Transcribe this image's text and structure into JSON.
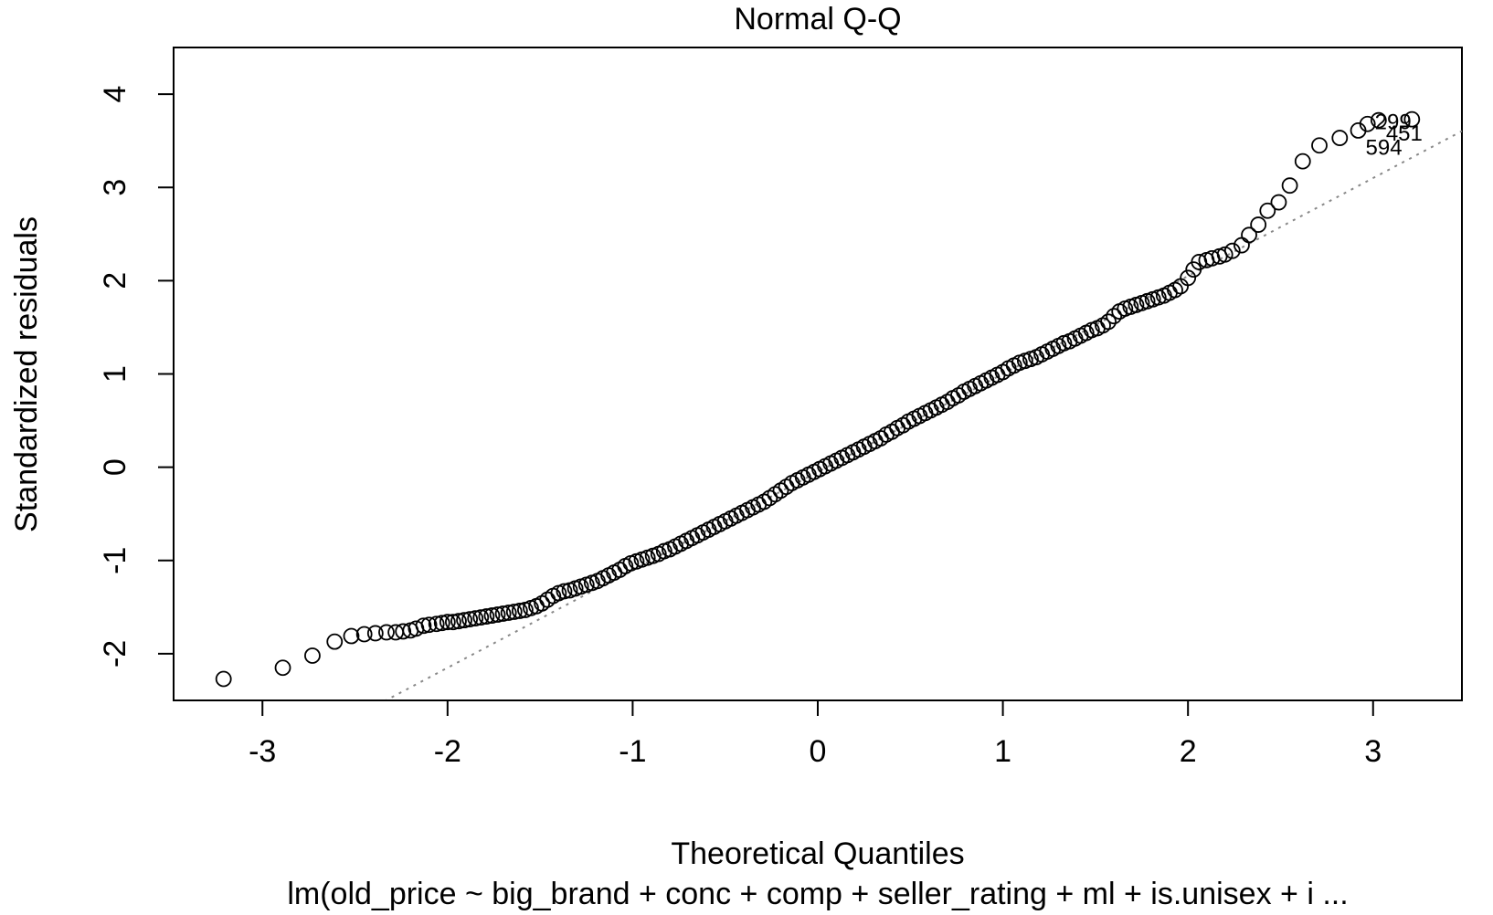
{
  "chart_data": {
    "type": "scatter",
    "title": "Normal Q-Q",
    "xlabel": "Theoretical Quantiles",
    "ylabel": "Standardized residuals",
    "subtitle": "lm(old_price ~ big_brand + conc + comp + seller_rating + ml + is.unisex + i ...",
    "xlim": [
      -3.48,
      3.48
    ],
    "ylim": [
      -2.5,
      4.5
    ],
    "xticks": [
      -3,
      -2,
      -1,
      0,
      1,
      2,
      3
    ],
    "yticks": [
      -2,
      -1,
      0,
      1,
      2,
      3,
      4
    ],
    "grid": false,
    "reference_line": {
      "style": "dotted",
      "color": "#888888",
      "slope": 1.05,
      "intercept": -0.05
    },
    "outlier_labels": [
      {
        "label": "299",
        "x": 2.97,
        "y": 3.72
      },
      {
        "label": "451",
        "x": 3.03,
        "y": 3.6
      },
      {
        "label": "594",
        "x": 2.92,
        "y": 3.45
      }
    ],
    "points": [
      [
        -3.21,
        -2.27
      ],
      [
        -2.89,
        -2.15
      ],
      [
        -2.73,
        -2.02
      ],
      [
        -2.61,
        -1.87
      ],
      [
        -2.52,
        -1.81
      ],
      [
        -2.45,
        -1.79
      ],
      [
        -2.39,
        -1.78
      ],
      [
        -2.33,
        -1.77
      ],
      [
        -2.28,
        -1.77
      ],
      [
        -2.24,
        -1.76
      ],
      [
        -2.2,
        -1.75
      ],
      [
        -2.17,
        -1.73
      ],
      [
        -2.13,
        -1.7
      ],
      [
        -2.1,
        -1.69
      ],
      [
        -2.06,
        -1.68
      ],
      [
        -2.03,
        -1.67
      ],
      [
        -2.0,
        -1.66
      ],
      [
        -1.97,
        -1.66
      ],
      [
        -1.94,
        -1.65
      ],
      [
        -1.91,
        -1.64
      ],
      [
        -1.88,
        -1.63
      ],
      [
        -1.85,
        -1.62
      ],
      [
        -1.82,
        -1.61
      ],
      [
        -1.79,
        -1.6
      ],
      [
        -1.76,
        -1.59
      ],
      [
        -1.73,
        -1.58
      ],
      [
        -1.7,
        -1.57
      ],
      [
        -1.67,
        -1.56
      ],
      [
        -1.64,
        -1.55
      ],
      [
        -1.61,
        -1.54
      ],
      [
        -1.58,
        -1.53
      ],
      [
        -1.55,
        -1.51
      ],
      [
        -1.52,
        -1.49
      ],
      [
        -1.49,
        -1.46
      ],
      [
        -1.46,
        -1.42
      ],
      [
        -1.43,
        -1.38
      ],
      [
        -1.4,
        -1.35
      ],
      [
        -1.37,
        -1.33
      ],
      [
        -1.34,
        -1.32
      ],
      [
        -1.31,
        -1.3
      ],
      [
        -1.28,
        -1.28
      ],
      [
        -1.25,
        -1.26
      ],
      [
        -1.22,
        -1.24
      ],
      [
        -1.19,
        -1.22
      ],
      [
        -1.16,
        -1.19
      ],
      [
        -1.13,
        -1.16
      ],
      [
        -1.1,
        -1.13
      ],
      [
        -1.07,
        -1.1
      ],
      [
        -1.04,
        -1.06
      ],
      [
        -1.01,
        -1.03
      ],
      [
        -0.98,
        -1.01
      ],
      [
        -0.95,
        -0.99
      ],
      [
        -0.92,
        -0.97
      ],
      [
        -0.89,
        -0.95
      ],
      [
        -0.86,
        -0.93
      ],
      [
        -0.83,
        -0.9
      ],
      [
        -0.8,
        -0.88
      ],
      [
        -0.77,
        -0.85
      ],
      [
        -0.74,
        -0.82
      ],
      [
        -0.71,
        -0.79
      ],
      [
        -0.68,
        -0.76
      ],
      [
        -0.65,
        -0.73
      ],
      [
        -0.62,
        -0.7
      ],
      [
        -0.59,
        -0.67
      ],
      [
        -0.56,
        -0.64
      ],
      [
        -0.53,
        -0.61
      ],
      [
        -0.5,
        -0.58
      ],
      [
        -0.47,
        -0.55
      ],
      [
        -0.44,
        -0.52
      ],
      [
        -0.41,
        -0.49
      ],
      [
        -0.38,
        -0.46
      ],
      [
        -0.35,
        -0.43
      ],
      [
        -0.32,
        -0.4
      ],
      [
        -0.29,
        -0.37
      ],
      [
        -0.26,
        -0.33
      ],
      [
        -0.23,
        -0.29
      ],
      [
        -0.2,
        -0.25
      ],
      [
        -0.17,
        -0.21
      ],
      [
        -0.14,
        -0.17
      ],
      [
        -0.11,
        -0.14
      ],
      [
        -0.08,
        -0.11
      ],
      [
        -0.05,
        -0.08
      ],
      [
        -0.02,
        -0.05
      ],
      [
        0.01,
        -0.02
      ],
      [
        0.04,
        0.01
      ],
      [
        0.07,
        0.04
      ],
      [
        0.1,
        0.07
      ],
      [
        0.13,
        0.1
      ],
      [
        0.16,
        0.13
      ],
      [
        0.19,
        0.16
      ],
      [
        0.22,
        0.19
      ],
      [
        0.25,
        0.22
      ],
      [
        0.28,
        0.25
      ],
      [
        0.31,
        0.28
      ],
      [
        0.34,
        0.31
      ],
      [
        0.37,
        0.35
      ],
      [
        0.4,
        0.38
      ],
      [
        0.43,
        0.42
      ],
      [
        0.46,
        0.45
      ],
      [
        0.49,
        0.49
      ],
      [
        0.52,
        0.52
      ],
      [
        0.55,
        0.55
      ],
      [
        0.58,
        0.58
      ],
      [
        0.61,
        0.61
      ],
      [
        0.64,
        0.64
      ],
      [
        0.67,
        0.67
      ],
      [
        0.7,
        0.7
      ],
      [
        0.73,
        0.74
      ],
      [
        0.76,
        0.77
      ],
      [
        0.79,
        0.81
      ],
      [
        0.82,
        0.84
      ],
      [
        0.85,
        0.87
      ],
      [
        0.88,
        0.9
      ],
      [
        0.91,
        0.93
      ],
      [
        0.94,
        0.96
      ],
      [
        0.97,
        0.99
      ],
      [
        1.0,
        1.02
      ],
      [
        1.03,
        1.06
      ],
      [
        1.06,
        1.09
      ],
      [
        1.09,
        1.12
      ],
      [
        1.12,
        1.14
      ],
      [
        1.15,
        1.16
      ],
      [
        1.18,
        1.18
      ],
      [
        1.21,
        1.21
      ],
      [
        1.24,
        1.24
      ],
      [
        1.27,
        1.27
      ],
      [
        1.3,
        1.3
      ],
      [
        1.33,
        1.33
      ],
      [
        1.36,
        1.35
      ],
      [
        1.39,
        1.38
      ],
      [
        1.42,
        1.41
      ],
      [
        1.45,
        1.44
      ],
      [
        1.48,
        1.47
      ],
      [
        1.51,
        1.49
      ],
      [
        1.54,
        1.52
      ],
      [
        1.57,
        1.56
      ],
      [
        1.6,
        1.62
      ],
      [
        1.63,
        1.67
      ],
      [
        1.66,
        1.7
      ],
      [
        1.69,
        1.72
      ],
      [
        1.72,
        1.74
      ],
      [
        1.75,
        1.76
      ],
      [
        1.78,
        1.78
      ],
      [
        1.81,
        1.8
      ],
      [
        1.84,
        1.82
      ],
      [
        1.87,
        1.84
      ],
      [
        1.9,
        1.87
      ],
      [
        1.93,
        1.9
      ],
      [
        1.96,
        1.94
      ],
      [
        2.0,
        2.03
      ],
      [
        2.03,
        2.12
      ],
      [
        2.06,
        2.2
      ],
      [
        2.1,
        2.22
      ],
      [
        2.13,
        2.24
      ],
      [
        2.17,
        2.26
      ],
      [
        2.2,
        2.28
      ],
      [
        2.24,
        2.32
      ],
      [
        2.29,
        2.38
      ],
      [
        2.33,
        2.49
      ],
      [
        2.38,
        2.6
      ],
      [
        2.43,
        2.75
      ],
      [
        2.49,
        2.84
      ],
      [
        2.55,
        3.02
      ],
      [
        2.62,
        3.28
      ],
      [
        2.71,
        3.45
      ],
      [
        2.82,
        3.53
      ],
      [
        2.92,
        3.61
      ],
      [
        2.97,
        3.68
      ],
      [
        3.03,
        3.72
      ],
      [
        3.21,
        3.73
      ]
    ]
  }
}
